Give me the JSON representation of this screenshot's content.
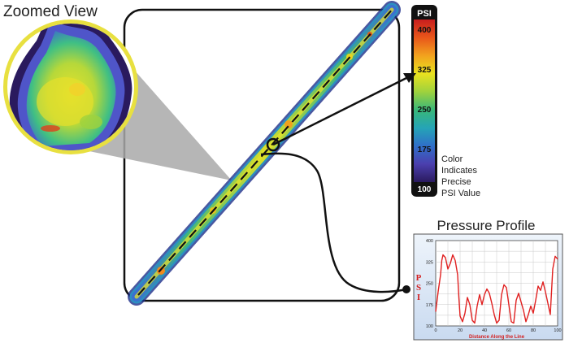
{
  "zoomed_view": {
    "title": "Zoomed View"
  },
  "colorbar": {
    "unit_label": "PSI",
    "ticks": [
      "400",
      "325",
      "250",
      "175",
      "100"
    ],
    "caption_lines": [
      "Color",
      "Indicates",
      "Precise",
      "PSI Value"
    ],
    "stops": [
      "#c81e1e",
      "#e8561a",
      "#f2a21e",
      "#e9e21f",
      "#9fd23d",
      "#39b879",
      "#25a4b6",
      "#2f6fc9",
      "#4b3fae",
      "#2a1a5e"
    ]
  },
  "pressure_profile": {
    "title": "Pressure Profile",
    "ylabel_letters": [
      "P",
      "S",
      "I"
    ],
    "xlabel": "Distance Along the Line",
    "line_color": "#e02020",
    "chart_data": {
      "type": "line",
      "xlim": [
        0,
        100
      ],
      "ylim": [
        100,
        400
      ],
      "x_ticks": [
        "0",
        "20",
        "40",
        "60",
        "80",
        "100"
      ],
      "y_ticks": [
        "400",
        "325",
        "250",
        "175",
        "100"
      ],
      "grid": true,
      "series": [
        {
          "x": [
            0,
            2,
            4,
            5,
            6,
            8,
            10,
            12,
            14,
            16,
            18,
            19,
            20,
            22,
            24,
            26,
            28,
            30,
            32,
            34,
            36,
            38,
            40,
            42,
            44,
            46,
            48,
            50,
            52,
            54,
            56,
            58,
            60,
            62,
            64,
            66,
            68,
            70,
            72,
            74,
            76,
            78,
            80,
            82,
            84,
            86,
            88,
            90,
            92,
            94,
            96,
            98,
            100
          ],
          "values": [
            150,
            220,
            280,
            330,
            350,
            340,
            300,
            320,
            350,
            330,
            280,
            200,
            135,
            115,
            145,
            200,
            175,
            120,
            110,
            170,
            210,
            175,
            210,
            230,
            215,
            180,
            140,
            110,
            120,
            210,
            245,
            235,
            175,
            115,
            110,
            190,
            215,
            185,
            155,
            115,
            140,
            170,
            145,
            190,
            240,
            225,
            255,
            220,
            180,
            140,
            300,
            345,
            335
          ]
        }
      ]
    }
  }
}
